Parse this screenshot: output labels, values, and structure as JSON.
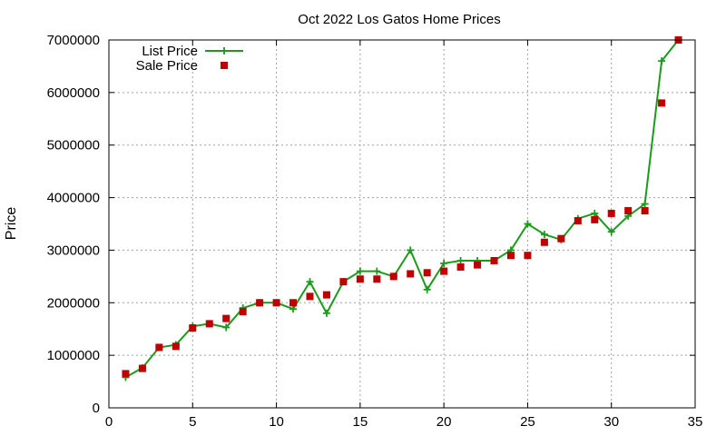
{
  "chart_data": {
    "type": "line",
    "title": "Oct 2022 Los Gatos Home Prices",
    "xlabel": "",
    "ylabel": "Price",
    "xlim": [
      0,
      35
    ],
    "ylim": [
      0,
      7000000
    ],
    "x_ticks": [
      0,
      5,
      10,
      15,
      20,
      25,
      30,
      35
    ],
    "y_ticks": [
      0,
      1000000,
      2000000,
      3000000,
      4000000,
      5000000,
      6000000,
      7000000
    ],
    "grid": true,
    "legend_position": "top-left",
    "series": [
      {
        "name": "List Price",
        "style": "line-plus",
        "color": "#1a9c1a",
        "x": [
          1,
          2,
          3,
          4,
          5,
          6,
          7,
          8,
          9,
          10,
          11,
          12,
          13,
          14,
          15,
          16,
          17,
          18,
          19,
          20,
          21,
          22,
          23,
          24,
          25,
          26,
          27,
          28,
          29,
          30,
          31,
          32,
          33,
          34
        ],
        "values": [
          580000,
          760000,
          1150000,
          1200000,
          1550000,
          1600000,
          1530000,
          1900000,
          2000000,
          2000000,
          1880000,
          2400000,
          1800000,
          2400000,
          2600000,
          2600000,
          2500000,
          3000000,
          2250000,
          2750000,
          2800000,
          2800000,
          2800000,
          3000000,
          3500000,
          3300000,
          3200000,
          3600000,
          3700000,
          3350000,
          3650000,
          3880000,
          6600000,
          7000000
        ]
      },
      {
        "name": "Sale Price",
        "style": "square-markers",
        "color": "#c00000",
        "x": [
          1,
          2,
          3,
          4,
          5,
          6,
          7,
          8,
          9,
          10,
          11,
          12,
          13,
          14,
          15,
          16,
          17,
          18,
          19,
          20,
          21,
          22,
          23,
          24,
          25,
          26,
          27,
          28,
          29,
          30,
          31,
          32,
          33,
          34
        ],
        "values": [
          650000,
          750000,
          1150000,
          1170000,
          1520000,
          1600000,
          1700000,
          1830000,
          2000000,
          2000000,
          2000000,
          2120000,
          2150000,
          2400000,
          2450000,
          2450000,
          2500000,
          2550000,
          2570000,
          2600000,
          2680000,
          2720000,
          2800000,
          2900000,
          2900000,
          3150000,
          3220000,
          3560000,
          3580000,
          3700000,
          3750000,
          3750000,
          5800000,
          7000000
        ]
      }
    ]
  }
}
